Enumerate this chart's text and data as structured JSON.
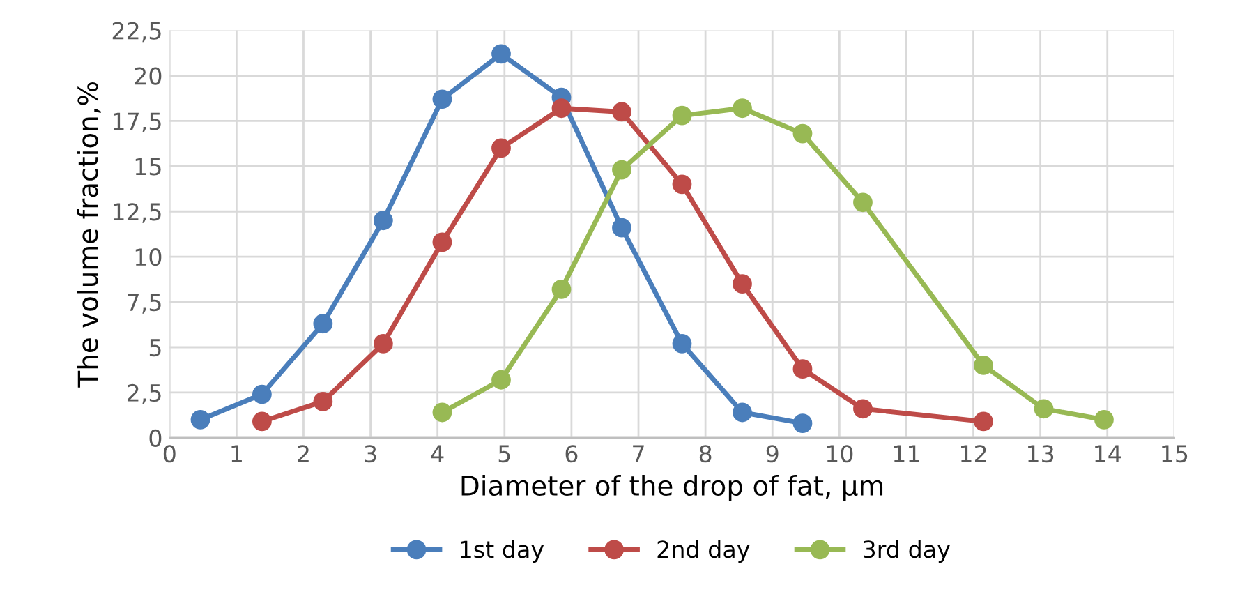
{
  "chart_data": {
    "type": "line",
    "xlabel": "Diameter of the drop of fat, µm",
    "ylabel": "The volume fraction,%",
    "xlim": [
      0,
      15
    ],
    "xticks": [
      0,
      1,
      2,
      3,
      4,
      5,
      6,
      7,
      8,
      9,
      10,
      11,
      12,
      13,
      14,
      15
    ],
    "ylim": [
      0,
      22.5
    ],
    "yticks": [
      0,
      {
        "value": 2.5,
        "label": "2,5"
      },
      5,
      {
        "value": 7.5,
        "label": "7,5"
      },
      10,
      {
        "value": 12.5,
        "label": "12,5"
      },
      15,
      {
        "value": 17.5,
        "label": "17,5"
      },
      20,
      {
        "value": 22.5,
        "label": "22,5"
      }
    ],
    "grid": true,
    "legend": "bottom",
    "marker": "circle",
    "line_style": "solid",
    "series": [
      {
        "name": "1st day",
        "color": "#4a7ebb",
        "x": [
          0.46,
          1.38,
          2.29,
          3.19,
          4.07,
          4.95,
          5.85,
          6.75,
          7.65,
          8.55,
          9.45
        ],
        "values": [
          1.0,
          2.4,
          6.3,
          12.0,
          18.7,
          21.2,
          18.8,
          11.6,
          5.2,
          1.4,
          0.8
        ]
      },
      {
        "name": "2nd day",
        "color": "#be4b48",
        "x": [
          1.38,
          2.29,
          3.19,
          4.07,
          4.95,
          5.85,
          6.75,
          7.65,
          8.55,
          9.45,
          10.35,
          12.15
        ],
        "values": [
          0.9,
          2.0,
          5.2,
          10.8,
          16.0,
          18.2,
          18.0,
          14.0,
          8.5,
          3.8,
          1.6,
          0.9
        ]
      },
      {
        "name": "3rd day",
        "color": "#98b954",
        "x": [
          4.07,
          4.95,
          5.85,
          6.75,
          7.65,
          8.55,
          9.45,
          10.35,
          12.15,
          13.05,
          13.95
        ],
        "values": [
          1.4,
          3.2,
          8.2,
          14.8,
          17.8,
          18.2,
          16.8,
          13.0,
          4.0,
          1.6,
          1.0
        ]
      }
    ]
  }
}
